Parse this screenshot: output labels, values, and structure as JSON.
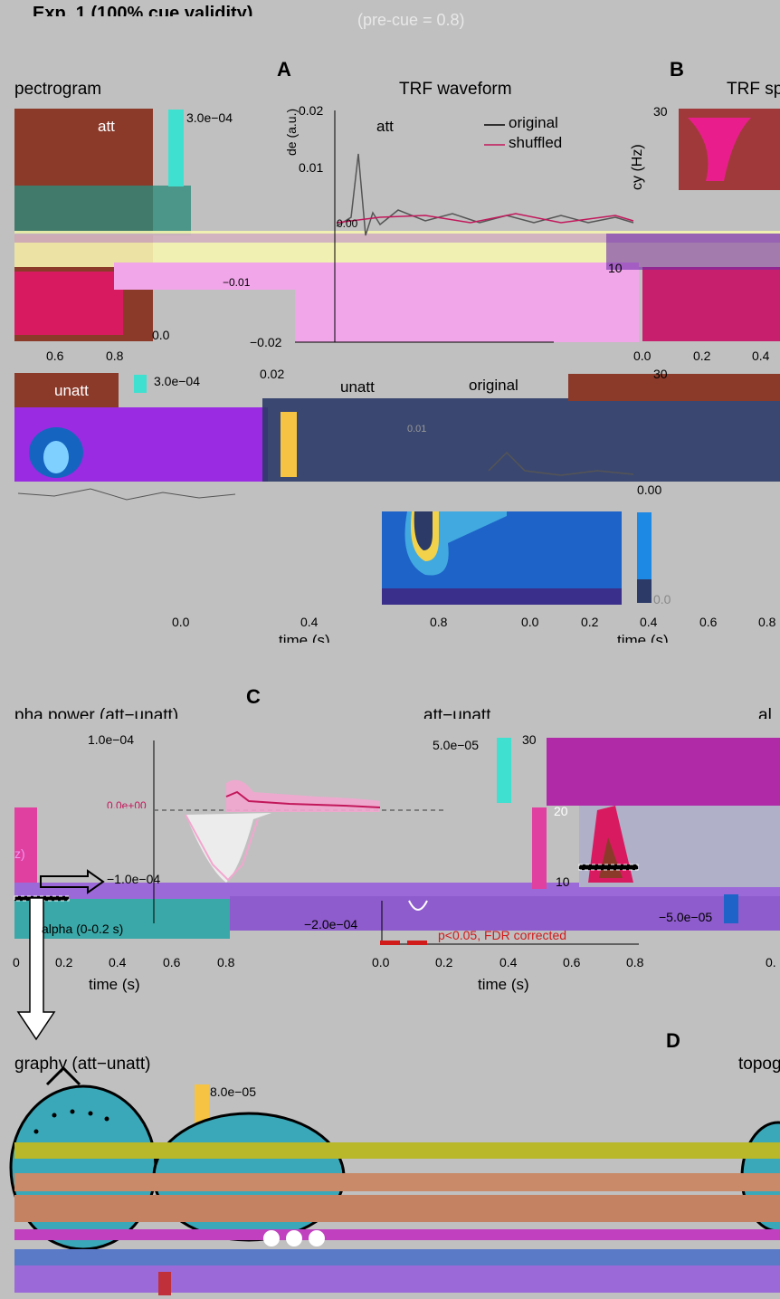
{
  "figure": {
    "header": "Exp. 1 (100% cue validity)",
    "header_tail": "(pre-cue = 0.8)"
  },
  "panel_A": {
    "letter": "A",
    "spectrogram_title": "pectrogram",
    "waveform_title": "TRF waveform",
    "att_label": "att",
    "unatt_label": "unatt",
    "legend": [
      "original",
      "shuffled"
    ],
    "colorbar_top": [
      "3.0e−04",
      "0.0"
    ],
    "colorbar_bottom": [
      "3.0e−04"
    ],
    "waveform_yticks": [
      "0.02",
      "0.01",
      "0.00",
      "−0.01",
      "−0.02"
    ],
    "waveform_yticks_bottom": [
      "0.02",
      "0.01",
      "0.00"
    ],
    "spec_xticks": [
      "0.6",
      "0.8"
    ],
    "bottom_xticks": [
      "0.0",
      "0.4",
      "0.8"
    ],
    "xlabel": "time (s)",
    "ylabel_partial": "de (a.u.)"
  },
  "panel_B": {
    "letter": "B",
    "title": "TRF sp",
    "yticks": [
      "30",
      "10"
    ],
    "xticks": [
      "0.0",
      "0.2",
      "0.4"
    ],
    "xticks_bottom": [
      "0.0",
      "0.2",
      "0.4",
      "0.6",
      "0.8"
    ],
    "ylabel_partial": "cy (Hz)",
    "colorbar_ticks": [
      "0.0"
    ]
  },
  "panel_C": {
    "letter": "C",
    "title_left": "pha power (att−unatt)",
    "title_mid": "att−unatt",
    "title_right": "al",
    "left_ylabel_partial": "z)",
    "left_box_label": "alpha (0-0.2 s)",
    "left_xticks": [
      "0",
      "0.2",
      "0.4",
      "0.6",
      "0.8"
    ],
    "mid_yticks": [
      "1.0e−04",
      "0.0e+00",
      "−1.0e−04",
      "−2.0e−04"
    ],
    "mid_xticks": [
      "0.0",
      "0.2",
      "0.4",
      "0.6",
      "0.8"
    ],
    "sig_label": "p<0.05, FDR corrected",
    "colorbar_ticks": [
      "5.0e−05",
      "−5.0e−05"
    ],
    "right_yticks": [
      "30",
      "20",
      "10"
    ],
    "right_xticks": [
      "0."
    ],
    "xlabel": "time (s)",
    "colors": {
      "sig": "#d11a1a",
      "att_curve": "#c2185b",
      "shade": "#f3a6cf"
    }
  },
  "panel_D": {
    "letter": "D",
    "title_left": "graphy (att−unatt)",
    "title_right": "topog",
    "colorbar_ticks": [
      "8.0e−05"
    ]
  },
  "chart_data": [
    {
      "type": "line",
      "title": "TRF waveform",
      "xlabel": "time (s)",
      "ylabel": "amplitude (a.u.)",
      "ylim": [
        -0.02,
        0.02
      ],
      "series": [
        {
          "name": "original",
          "x": [
            0.0,
            0.05,
            0.1,
            0.15,
            0.2,
            0.3,
            0.4,
            0.5,
            0.6,
            0.7,
            0.8
          ],
          "values": [
            0.0,
            0.013,
            -0.005,
            0.004,
            0.001,
            0.002,
            -0.001,
            0.002,
            0.001,
            0.001,
            0.0
          ]
        },
        {
          "name": "shuffled",
          "x": [
            0.0,
            0.2,
            0.4,
            0.6,
            0.8
          ],
          "values": [
            0.0,
            0.0,
            0.0,
            0.0,
            0.0
          ]
        }
      ]
    },
    {
      "type": "line",
      "title": "att−unatt",
      "xlabel": "time (s)",
      "ylim": [
        -0.0002,
        0.0001
      ],
      "series": [
        {
          "x": [
            0.0,
            0.05,
            0.1,
            0.15,
            0.2,
            0.3,
            0.4,
            0.5,
            0.6,
            0.7,
            0.8
          ],
          "values": [
            0.0,
            0.0,
            3e-05,
            4e-05,
            2e-05,
            1e-05,
            0.0,
            0.0,
            0.0,
            0.0,
            0.0
          ]
        },
        {
          "x": [
            0.0,
            0.05,
            0.1,
            0.15,
            0.2,
            0.3,
            0.4,
            0.5,
            0.6,
            0.7,
            0.8
          ],
          "values": [
            0.0,
            -0.00012,
            -4e-05,
            -1e-05,
            0.0,
            0.0,
            0.0,
            0.0,
            0.0,
            0.0,
            0.0
          ]
        }
      ]
    }
  ]
}
